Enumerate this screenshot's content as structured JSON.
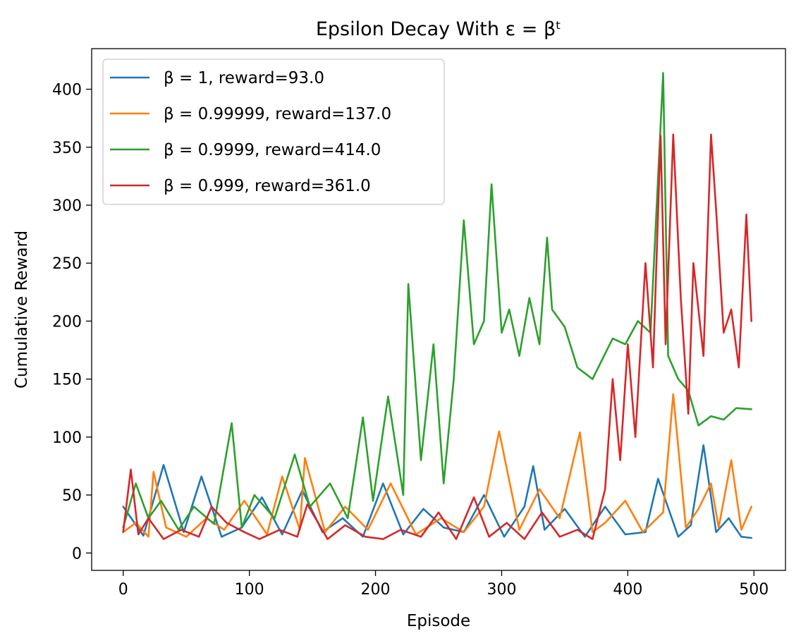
{
  "chart_data": {
    "type": "line",
    "title": "Epsilon Decay With ε = βᵗ",
    "xlabel": "Episode",
    "ylabel": "Cumulative Reward",
    "xlim": [
      -25,
      525
    ],
    "ylim": [
      -15,
      435
    ],
    "xticks": [
      0,
      100,
      200,
      300,
      400,
      500
    ],
    "yticks": [
      0,
      50,
      100,
      150,
      200,
      250,
      300,
      350,
      400
    ],
    "grid": false,
    "legend_position": "top-left",
    "series": [
      {
        "name": "β = 1, reward=93.0",
        "color": "#1f77b4",
        "x": [
          0,
          16,
          32,
          48,
          62,
          78,
          94,
          110,
          126,
          142,
          158,
          174,
          190,
          206,
          222,
          238,
          254,
          270,
          286,
          302,
          318,
          325,
          334,
          350,
          366,
          382,
          398,
          414,
          424,
          440,
          450,
          460,
          470,
          480,
          490,
          498
        ],
        "y": [
          40,
          15,
          76,
          18,
          66,
          14,
          22,
          48,
          16,
          54,
          18,
          30,
          14,
          60,
          16,
          38,
          22,
          18,
          50,
          14,
          40,
          75,
          20,
          38,
          14,
          40,
          16,
          18,
          64,
          14,
          24,
          93,
          18,
          30,
          14,
          13
        ]
      },
      {
        "name": "β = 0.99999, reward=137.0",
        "color": "#ff7f0e",
        "x": [
          0,
          10,
          20,
          24,
          34,
          50,
          66,
          80,
          96,
          114,
          126,
          140,
          144,
          160,
          176,
          194,
          212,
          232,
          252,
          270,
          286,
          298,
          314,
          330,
          346,
          362,
          372,
          382,
          398,
          412,
          428,
          436,
          446,
          456,
          466,
          472,
          482,
          490,
          498
        ],
        "y": [
          18,
          26,
          14,
          70,
          22,
          14,
          30,
          20,
          45,
          16,
          66,
          20,
          82,
          18,
          40,
          20,
          60,
          16,
          30,
          18,
          40,
          105,
          20,
          55,
          30,
          104,
          18,
          26,
          45,
          18,
          35,
          137,
          22,
          38,
          60,
          22,
          80,
          20,
          40
        ]
      },
      {
        "name": "β = 0.9999, reward=414.0",
        "color": "#2ca02c",
        "x": [
          0,
          10,
          20,
          30,
          44,
          56,
          72,
          86,
          94,
          104,
          120,
          136,
          148,
          164,
          178,
          190,
          198,
          210,
          222,
          226,
          236,
          246,
          254,
          262,
          270,
          278,
          286,
          292,
          300,
          306,
          314,
          322,
          330,
          336,
          340,
          350,
          360,
          372,
          388,
          398,
          408,
          418,
          428,
          432,
          440,
          448,
          456,
          466,
          476,
          486,
          498
        ],
        "y": [
          22,
          60,
          30,
          45,
          20,
          40,
          25,
          112,
          22,
          50,
          30,
          85,
          40,
          60,
          30,
          117,
          45,
          135,
          50,
          232,
          80,
          180,
          60,
          150,
          287,
          180,
          200,
          318,
          190,
          210,
          170,
          220,
          180,
          272,
          210,
          195,
          160,
          150,
          185,
          180,
          200,
          190,
          414,
          170,
          150,
          140,
          110,
          118,
          115,
          125,
          124
        ]
      },
      {
        "name": "β = 0.999, reward=361.0",
        "color": "#d62728",
        "x": [
          0,
          6,
          12,
          20,
          32,
          46,
          60,
          70,
          82,
          96,
          108,
          124,
          138,
          146,
          162,
          176,
          192,
          206,
          220,
          236,
          250,
          264,
          278,
          290,
          304,
          318,
          332,
          346,
          360,
          372,
          382,
          388,
          394,
          400,
          406,
          414,
          420,
          426,
          430,
          436,
          442,
          448,
          452,
          460,
          466,
          470,
          476,
          482,
          488,
          494,
          498
        ],
        "y": [
          18,
          72,
          16,
          30,
          12,
          20,
          14,
          40,
          26,
          18,
          12,
          20,
          14,
          42,
          12,
          24,
          14,
          12,
          20,
          14,
          35,
          12,
          48,
          14,
          26,
          12,
          35,
          14,
          20,
          12,
          55,
          150,
          80,
          180,
          100,
          250,
          160,
          360,
          180,
          361,
          220,
          120,
          250,
          170,
          361,
          296,
          190,
          210,
          160,
          292,
          200
        ]
      }
    ]
  }
}
